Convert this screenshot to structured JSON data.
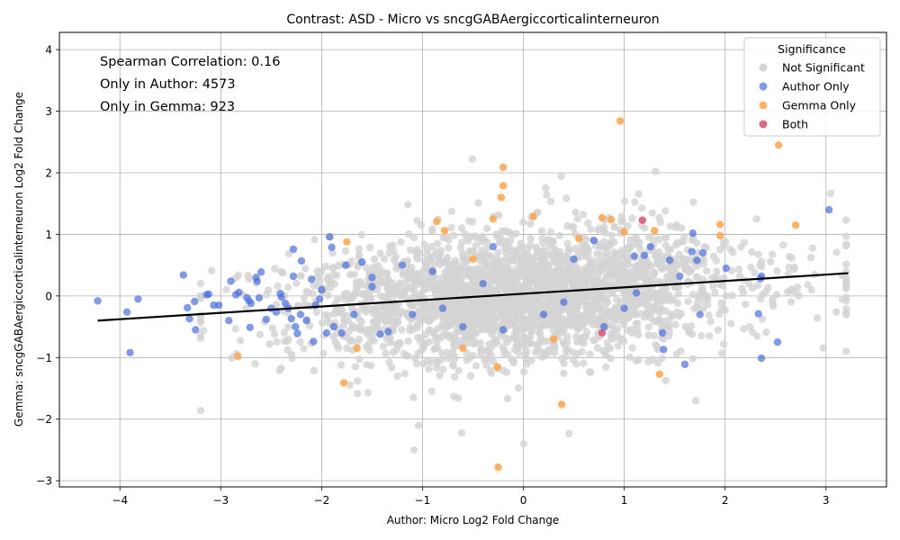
{
  "chart_data": {
    "type": "scatter",
    "title": "Contrast: ASD - Micro vs sncgGABAergiccorticalinterneuron",
    "xlabel": "Author: Micro Log2 Fold Change",
    "ylabel": "Gemma: sncgGABAergiccorticalinterneuron Log2 Fold Change",
    "xlim": [
      -4.6,
      3.6
    ],
    "ylim": [
      -3.1,
      4.28
    ],
    "xticks": [
      -4,
      -3,
      -2,
      -1,
      0,
      1,
      2,
      3
    ],
    "yticks": [
      -3,
      -2,
      -1,
      0,
      1,
      2,
      3,
      4
    ],
    "xtick_labels": [
      "−4",
      "−3",
      "−2",
      "−1",
      "0",
      "1",
      "2",
      "3"
    ],
    "ytick_labels": [
      "−3",
      "−2",
      "−1",
      "0",
      "1",
      "2",
      "3",
      "4"
    ],
    "grid": true,
    "legend": {
      "title": "Significance",
      "placement": "top-right",
      "entries": [
        "Not Significant",
        "Author Only",
        "Gemma Only",
        "Both"
      ]
    },
    "annotations": [
      "Spearman Correlation: 0.16",
      "Only in Author: 4573",
      "Only in Gemma: 923"
    ],
    "regression_line": {
      "x": [
        -4.22,
        3.22
      ],
      "y": [
        -0.4,
        0.37
      ]
    },
    "colors": {
      "not_significant": "#d3d3d3",
      "author_only": "#4a6fdb",
      "gemma_only": "#ffa54a",
      "both": "#dc5a78",
      "regression": "#000000"
    },
    "series": [
      {
        "name": "Gemma Only",
        "points": [
          [
            0.96,
            2.84
          ],
          [
            2.53,
            2.45
          ],
          [
            -0.2,
            2.09
          ],
          [
            -0.2,
            1.79
          ],
          [
            -0.22,
            1.6
          ],
          [
            -0.3,
            1.25
          ],
          [
            -0.86,
            1.21
          ],
          [
            -0.78,
            1.06
          ],
          [
            0.1,
            1.29
          ],
          [
            0.78,
            1.27
          ],
          [
            0.87,
            1.24
          ],
          [
            1.0,
            1.04
          ],
          [
            1.3,
            1.06
          ],
          [
            1.95,
            1.16
          ],
          [
            2.7,
            1.15
          ],
          [
            -1.75,
            0.88
          ],
          [
            -2.83,
            -0.98
          ],
          [
            -1.78,
            -1.41
          ],
          [
            -0.26,
            -1.15
          ],
          [
            1.35,
            -1.27
          ],
          [
            0.38,
            -1.76
          ],
          [
            -0.25,
            -2.78
          ],
          [
            -1.65,
            -0.85
          ],
          [
            0.55,
            0.93
          ],
          [
            -0.6,
            -0.85
          ],
          [
            0.3,
            -0.7
          ],
          [
            1.95,
            0.98
          ],
          [
            -0.5,
            0.6
          ]
        ]
      },
      {
        "name": "Both",
        "points": [
          [
            1.18,
            1.23
          ],
          [
            0.78,
            -0.6
          ]
        ]
      },
      {
        "name": "Author Only",
        "points": [
          [
            -4.22,
            -0.08
          ],
          [
            -3.93,
            -0.26
          ],
          [
            -3.9,
            -0.92
          ],
          [
            -3.82,
            -0.05
          ],
          [
            -3.37,
            0.34
          ],
          [
            -3.33,
            -0.19
          ],
          [
            -3.31,
            -0.37
          ],
          [
            -3.26,
            -0.09
          ],
          [
            -3.25,
            -0.55
          ],
          [
            -3.14,
            0.02
          ],
          [
            -3.12,
            0.03
          ],
          [
            -3.07,
            -0.15
          ],
          [
            -3.02,
            -0.15
          ],
          [
            -2.92,
            -0.4
          ],
          [
            -2.9,
            0.24
          ],
          [
            -2.85,
            0.02
          ],
          [
            -2.82,
            0.06
          ],
          [
            -2.74,
            -0.03
          ],
          [
            -2.72,
            -0.08
          ],
          [
            -2.71,
            -0.51
          ],
          [
            -2.7,
            -0.12
          ],
          [
            -2.65,
            0.3
          ],
          [
            -2.64,
            0.24
          ],
          [
            -2.62,
            -0.03
          ],
          [
            -2.6,
            0.39
          ],
          [
            -2.55,
            -0.38
          ],
          [
            -2.5,
            -0.2
          ],
          [
            -2.45,
            -0.26
          ],
          [
            -2.41,
            0.04
          ],
          [
            -2.4,
            -0.02
          ],
          [
            -2.36,
            -0.12
          ],
          [
            -2.33,
            -0.2
          ],
          [
            -2.3,
            -0.37
          ],
          [
            -2.28,
            0.32
          ],
          [
            -2.28,
            0.76
          ],
          [
            -2.26,
            -0.5
          ],
          [
            -2.24,
            -0.61
          ],
          [
            -2.21,
            -0.3
          ],
          [
            -2.2,
            0.57
          ],
          [
            -2.15,
            -0.4
          ],
          [
            -2.1,
            0.27
          ],
          [
            -2.08,
            -0.74
          ],
          [
            -2.06,
            -0.15
          ],
          [
            -2.02,
            -0.05
          ],
          [
            -1.95,
            -0.6
          ],
          [
            -1.92,
            0.96
          ],
          [
            -1.9,
            0.79
          ],
          [
            -1.88,
            -0.5
          ],
          [
            -1.8,
            -0.6
          ],
          [
            -1.76,
            0.5
          ],
          [
            -1.68,
            -0.3
          ],
          [
            -1.6,
            0.55
          ],
          [
            -1.5,
            0.3
          ],
          [
            -1.42,
            -0.62
          ],
          [
            -1.34,
            -0.58
          ],
          [
            -1.2,
            0.5
          ],
          [
            -1.1,
            -0.3
          ],
          [
            -0.9,
            0.4
          ],
          [
            -0.6,
            -0.5
          ],
          [
            -0.4,
            0.2
          ],
          [
            0.2,
            -0.3
          ],
          [
            0.5,
            0.6
          ],
          [
            0.8,
            -0.5
          ],
          [
            1.1,
            0.65
          ],
          [
            1.12,
            0.05
          ],
          [
            1.2,
            0.66
          ],
          [
            1.26,
            0.8
          ],
          [
            1.38,
            -0.6
          ],
          [
            1.39,
            -0.87
          ],
          [
            1.45,
            0.58
          ],
          [
            1.55,
            0.32
          ],
          [
            1.6,
            -1.11
          ],
          [
            1.67,
            0.72
          ],
          [
            1.68,
            1.02
          ],
          [
            1.72,
            0.58
          ],
          [
            1.75,
            -0.3
          ],
          [
            1.78,
            0.7
          ],
          [
            2.01,
            0.45
          ],
          [
            2.33,
            -0.29
          ],
          [
            2.35,
            0.28
          ],
          [
            2.36,
            0.32
          ],
          [
            2.36,
            -1.01
          ],
          [
            2.52,
            -0.75
          ],
          [
            3.03,
            1.4
          ],
          [
            -0.3,
            0.8
          ],
          [
            0.7,
            0.9
          ],
          [
            -0.8,
            -0.2
          ],
          [
            0.4,
            -0.1
          ],
          [
            -1.5,
            0.15
          ],
          [
            -0.2,
            -0.55
          ],
          [
            1.0,
            -0.2
          ],
          [
            -2.0,
            0.1
          ]
        ]
      }
    ]
  }
}
